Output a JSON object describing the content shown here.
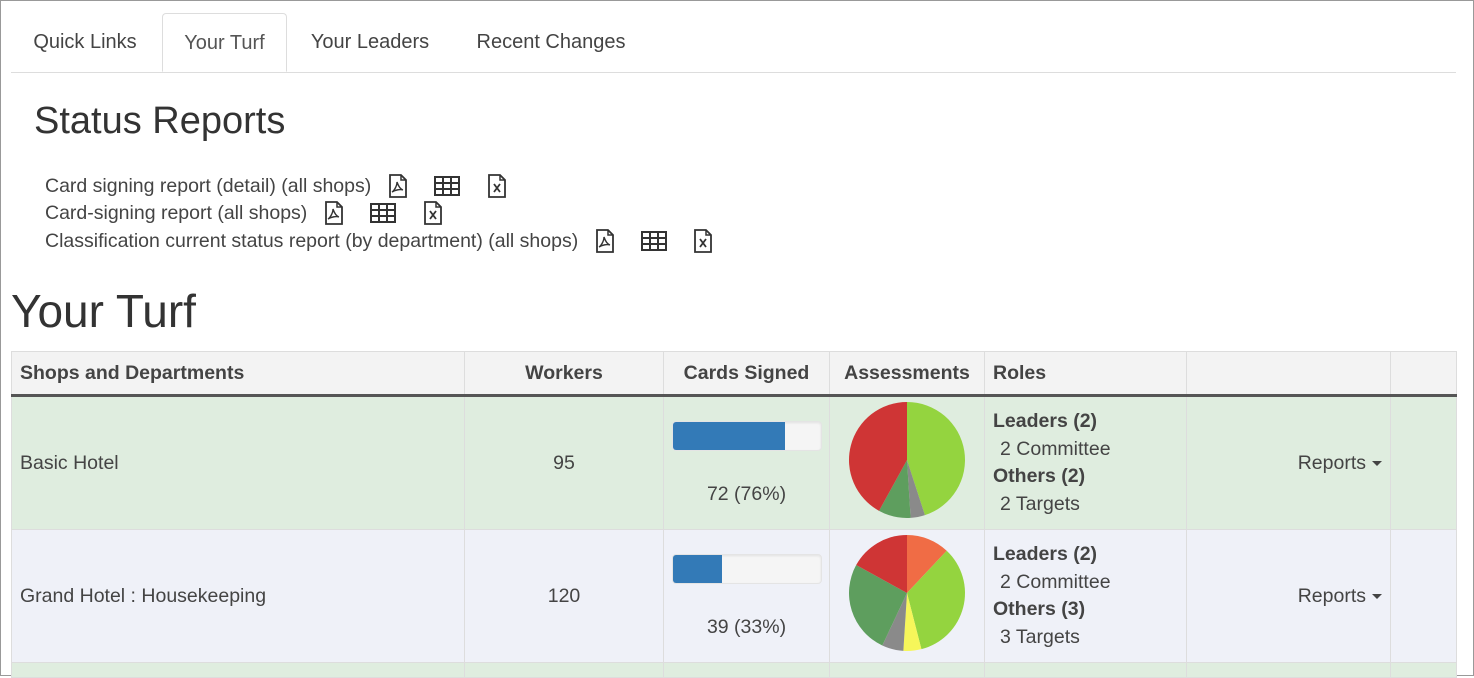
{
  "tabs": [
    {
      "label": "Quick Links",
      "active": false
    },
    {
      "label": "Your Turf",
      "active": true
    },
    {
      "label": "Your Leaders",
      "active": false
    },
    {
      "label": "Recent Changes",
      "active": false
    }
  ],
  "status_reports": {
    "title": "Status Reports",
    "items": [
      {
        "label": "Card signing report (detail) (all shops)",
        "icons": [
          "pdf-icon",
          "grid-icon",
          "xls-icon"
        ]
      },
      {
        "label": "Card-signing report (all shops)",
        "icons": [
          "pdf-icon",
          "grid-icon",
          "xls-icon"
        ]
      },
      {
        "label": "Classification current status report (by department) (all shops)",
        "icons": [
          "pdf-icon",
          "grid-icon",
          "xls-icon"
        ]
      }
    ]
  },
  "turf": {
    "title": "Your Turf",
    "columns": [
      "Shops and Departments",
      "Workers",
      "Cards Signed",
      "Assessments",
      "Roles",
      "",
      ""
    ],
    "rows": [
      {
        "name": "Basic Hotel",
        "workers": "95",
        "cards_signed": "72 (76%)",
        "cards_fraction": 0.76,
        "roles": {
          "leaders": "Leaders (2)",
          "leaders_sub": "2 Committee",
          "others": "Others (2)",
          "others_sub": "2 Targets"
        },
        "reports_label": "Reports",
        "pie_fractions": [
          0.0,
          0.45,
          0.0,
          0.04,
          0.09,
          0.42
        ],
        "pie_start_fraction": 0.0
      },
      {
        "name": "Grand Hotel : Housekeeping",
        "workers": "120",
        "cards_signed": "39 (33%)",
        "cards_fraction": 0.33,
        "roles": {
          "leaders": "Leaders (2)",
          "leaders_sub": "2 Committee",
          "others": "Others (3)",
          "others_sub": "3 Targets"
        },
        "reports_label": "Reports",
        "pie_fractions": [
          0.12,
          0.34,
          0.05,
          0.06,
          0.26,
          0.17
        ],
        "pie_start_fraction": 0.0
      }
    ]
  },
  "colors": {
    "bar_fill": "#337ab7",
    "row_green": "#dfeddf",
    "row_blue": "#eff1f8",
    "pie_palette": [
      "#f06c45",
      "#94d43f",
      "#f6f65a",
      "#8a8a8a",
      "#5e9e5e",
      "#cf3535"
    ]
  }
}
